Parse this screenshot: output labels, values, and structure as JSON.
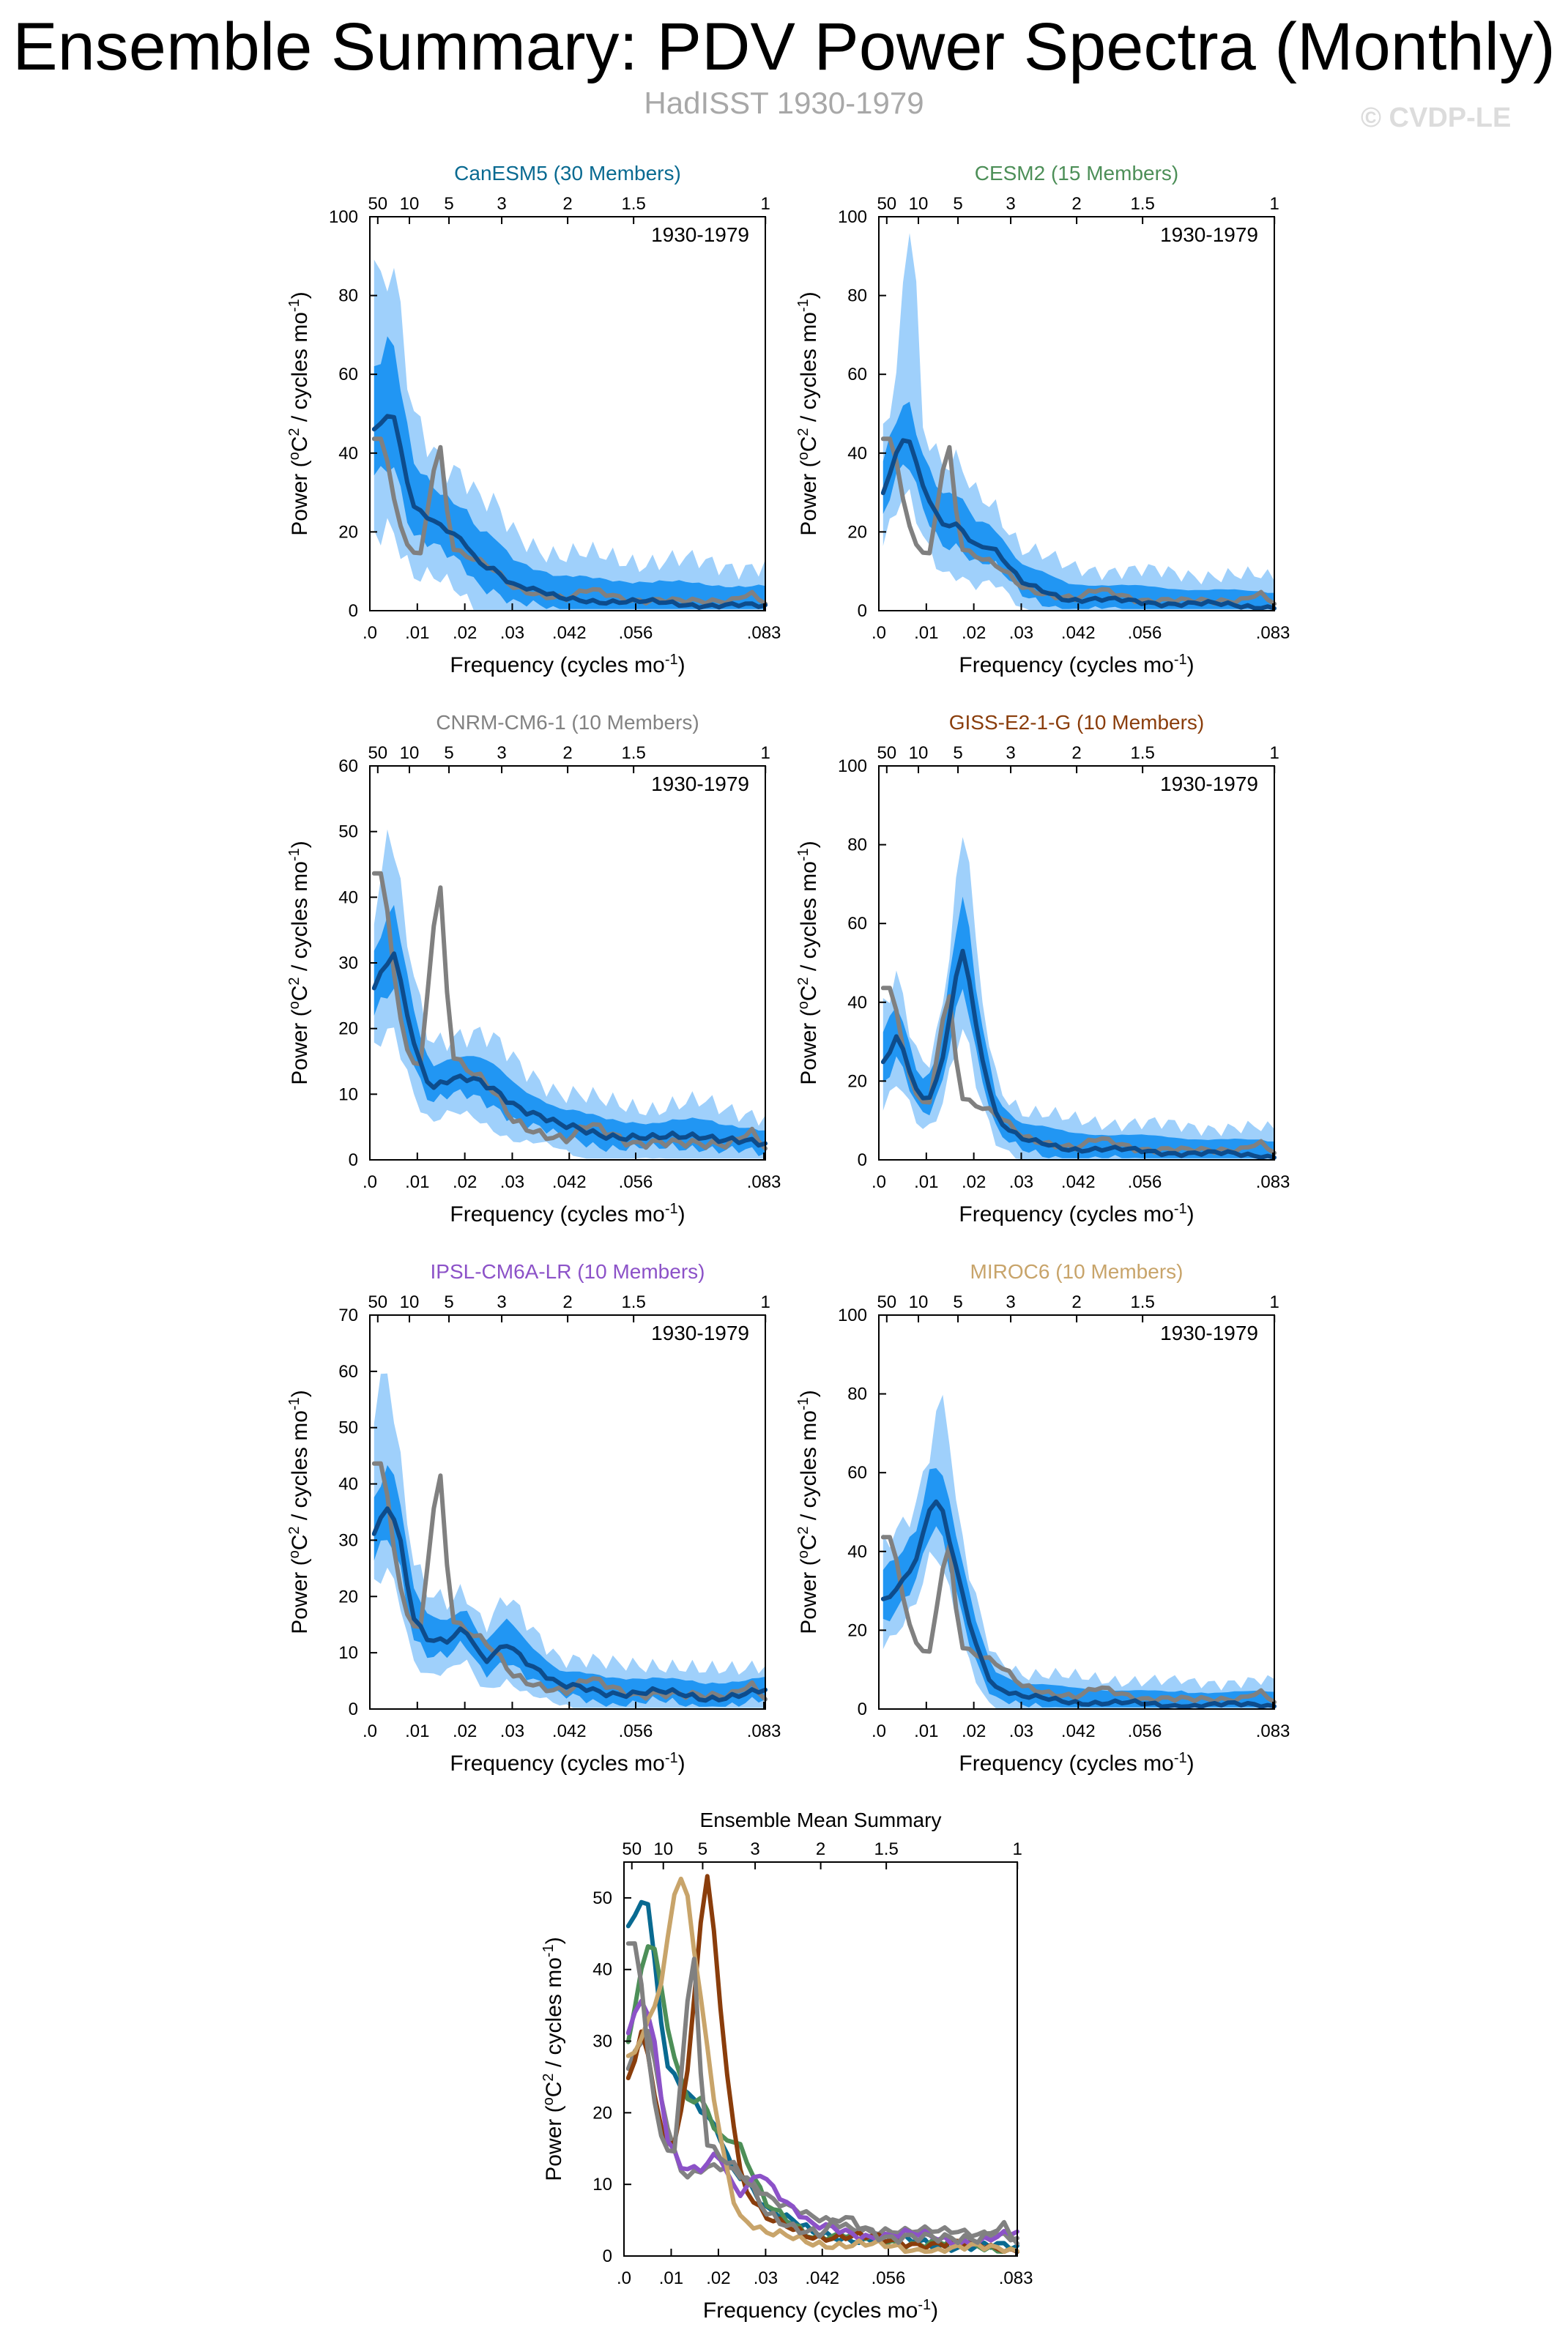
{
  "title": "Ensemble Summary: PDV Power Spectra (Monthly)",
  "subtitle": "HadISST 1930-1979",
  "credit": "© CVDP-LE",
  "common": {
    "period_label": "1930-1979",
    "xlabel": "Frequency (cycles mo",
    "xlabel_sup": "-1",
    "xlabel_end": ")",
    "ylabel_prefix": "Power (",
    "ylabel_o": "o",
    "ylabel_mid": "C",
    "ylabel_sup2": "2",
    "ylabel_mid2": " / cycles mo",
    "ylabel_sup": "-1",
    "ylabel_end": ")",
    "x_range": [
      0,
      0.0833
    ],
    "x_ticks": [
      0.0,
      0.01,
      0.02,
      0.03,
      0.042,
      0.056,
      0.083
    ],
    "x_tick_labels": [
      ".0",
      ".01",
      ".02",
      ".03",
      ".042",
      ".056",
      ".083"
    ],
    "top_ticks": [
      50,
      10,
      5,
      3,
      2,
      1.5,
      1
    ],
    "top_tick_labels": [
      "50",
      "10",
      "5",
      "3",
      "2",
      "1.5",
      "1"
    ],
    "colors": {
      "outer_band": "#9fd0fb",
      "inner_band": "#2196f3",
      "ensemble_mean": "#0d4c8c",
      "observed": "#808080"
    }
  },
  "chart_data": [
    {
      "type": "area",
      "title": "CanESM5 (30 Members)",
      "title_color": "#096a91",
      "ylim": [
        0,
        100
      ],
      "y_ticks": [
        0,
        20,
        40,
        60,
        80,
        100
      ],
      "mean_peaks": [
        [
          0.002,
          46
        ],
        [
          0.003,
          50
        ],
        [
          0.005,
          50
        ],
        [
          0.009,
          27
        ],
        [
          0.014,
          22
        ],
        [
          0.02,
          17
        ],
        [
          0.023,
          12
        ],
        [
          0.026,
          11
        ],
        [
          0.03,
          7
        ],
        [
          0.04,
          3
        ],
        [
          0.06,
          2
        ],
        [
          0.083,
          1
        ]
      ],
      "inner_hw": 14,
      "outer_hw": 28,
      "inner_low": [
        0.002,
        0.02,
        0.045
      ],
      "outer_extra": [
        [
          0.001,
          90
        ]
      ]
    },
    {
      "type": "area",
      "title": "CESM2 (15 Members)",
      "title_color": "#4d8f58",
      "ylim": [
        0,
        100
      ],
      "y_ticks": [
        0,
        20,
        40,
        60,
        80,
        100
      ],
      "mean_peaks": [
        [
          0.001,
          30
        ],
        [
          0.003,
          38
        ],
        [
          0.006,
          45
        ],
        [
          0.009,
          32
        ],
        [
          0.013,
          22
        ],
        [
          0.017,
          22
        ],
        [
          0.02,
          17
        ],
        [
          0.024,
          16
        ],
        [
          0.028,
          10
        ],
        [
          0.03,
          7
        ],
        [
          0.04,
          3
        ],
        [
          0.06,
          2
        ],
        [
          0.083,
          1
        ]
      ],
      "inner_hw": 10,
      "outer_hw": 20,
      "outer_extra": [
        [
          0.0065,
          96
        ]
      ]
    },
    {
      "type": "area",
      "title": "CNRM-CM6-1 (10 Members)",
      "title_color": "#828282",
      "ylim": [
        0,
        60
      ],
      "y_ticks": [
        0,
        10,
        20,
        30,
        40,
        50,
        60
      ],
      "mean_peaks": [
        [
          0.001,
          26
        ],
        [
          0.005,
          32
        ],
        [
          0.01,
          16
        ],
        [
          0.013,
          11
        ],
        [
          0.017,
          12
        ],
        [
          0.022,
          12
        ],
        [
          0.026,
          11
        ],
        [
          0.032,
          8
        ],
        [
          0.04,
          5
        ],
        [
          0.05,
          4
        ],
        [
          0.06,
          3
        ],
        [
          0.07,
          4
        ],
        [
          0.083,
          2
        ]
      ],
      "inner_hw": 9,
      "outer_hw": 18,
      "outer_extra": [
        [
          0.004,
          52
        ]
      ]
    },
    {
      "type": "area",
      "title": "GISS-E2-1-G (10 Members)",
      "title_color": "#8a3d0b",
      "ylim": [
        0,
        100
      ],
      "y_ticks": [
        0,
        20,
        40,
        60,
        80,
        100
      ],
      "mean_peaks": [
        [
          0.001,
          25
        ],
        [
          0.004,
          32
        ],
        [
          0.008,
          17
        ],
        [
          0.01,
          14
        ],
        [
          0.013,
          22
        ],
        [
          0.016,
          45
        ],
        [
          0.018,
          55
        ],
        [
          0.021,
          30
        ],
        [
          0.025,
          10
        ],
        [
          0.03,
          5
        ],
        [
          0.04,
          3
        ],
        [
          0.06,
          2
        ],
        [
          0.083,
          1
        ]
      ],
      "inner_hw": 10,
      "outer_hw": 18,
      "outer_extra": [
        [
          0.018,
          85
        ]
      ]
    },
    {
      "type": "area",
      "title": "IPSL-CM6A-LR (10 Members)",
      "title_color": "#8c52c8",
      "ylim": [
        0,
        70
      ],
      "y_ticks": [
        0,
        10,
        20,
        30,
        40,
        50,
        60,
        70
      ],
      "mean_peaks": [
        [
          0.001,
          31
        ],
        [
          0.004,
          36
        ],
        [
          0.006,
          32
        ],
        [
          0.009,
          17
        ],
        [
          0.012,
          13
        ],
        [
          0.016,
          12
        ],
        [
          0.02,
          14
        ],
        [
          0.024,
          8
        ],
        [
          0.029,
          12
        ],
        [
          0.034,
          8
        ],
        [
          0.04,
          4
        ],
        [
          0.05,
          3
        ],
        [
          0.06,
          3
        ],
        [
          0.07,
          2
        ],
        [
          0.083,
          3
        ]
      ],
      "inner_hw": 9,
      "outer_hw": 17,
      "outer_extra": [
        [
          0.003,
          64
        ]
      ]
    },
    {
      "type": "area",
      "title": "MIROC6 (10 Members)",
      "title_color": "#c8a46a",
      "ylim": [
        0,
        100
      ],
      "y_ticks": [
        0,
        20,
        40,
        60,
        80,
        100
      ],
      "mean_peaks": [
        [
          0.001,
          28
        ],
        [
          0.004,
          31
        ],
        [
          0.008,
          38
        ],
        [
          0.011,
          52
        ],
        [
          0.013,
          52
        ],
        [
          0.016,
          37
        ],
        [
          0.02,
          18
        ],
        [
          0.024,
          6
        ],
        [
          0.03,
          3
        ],
        [
          0.04,
          2
        ],
        [
          0.06,
          1
        ],
        [
          0.083,
          1
        ]
      ],
      "inner_hw": 9,
      "outer_hw": 16,
      "outer_extra": [
        [
          0.013,
          84
        ]
      ]
    },
    {
      "type": "line",
      "title": "Ensemble Mean Summary",
      "ylim": [
        0,
        55
      ],
      "y_ticks": [
        0,
        10,
        20,
        30,
        40,
        50
      ],
      "series": [
        {
          "name": "CanESM5",
          "color": "#096a91"
        },
        {
          "name": "CESM2",
          "color": "#4d8f58"
        },
        {
          "name": "CNRM-CM6-1",
          "color": "#828282"
        },
        {
          "name": "GISS-E2-1-G",
          "color": "#8a3d0b"
        },
        {
          "name": "IPSL-CM6A-LR",
          "color": "#8c52c8"
        },
        {
          "name": "MIROC6",
          "color": "#c8a46a"
        },
        {
          "name": "HadISST",
          "color": "#808080"
        }
      ]
    }
  ],
  "observed_peaks": [
    [
      0.001,
      44
    ],
    [
      0.002,
      44
    ],
    [
      0.004,
      36
    ],
    [
      0.006,
      22
    ],
    [
      0.008,
      16
    ],
    [
      0.011,
      14
    ],
    [
      0.013,
      35
    ],
    [
      0.015,
      42
    ],
    [
      0.017,
      17
    ],
    [
      0.02,
      14
    ],
    [
      0.022,
      13
    ],
    [
      0.026,
      10
    ],
    [
      0.03,
      6
    ],
    [
      0.034,
      5
    ],
    [
      0.038,
      4
    ],
    [
      0.042,
      3
    ],
    [
      0.046,
      5
    ],
    [
      0.05,
      4
    ],
    [
      0.055,
      3
    ],
    [
      0.06,
      3
    ],
    [
      0.066,
      2
    ],
    [
      0.07,
      2
    ],
    [
      0.076,
      3
    ],
    [
      0.08,
      5
    ],
    [
      0.083,
      2
    ]
  ]
}
